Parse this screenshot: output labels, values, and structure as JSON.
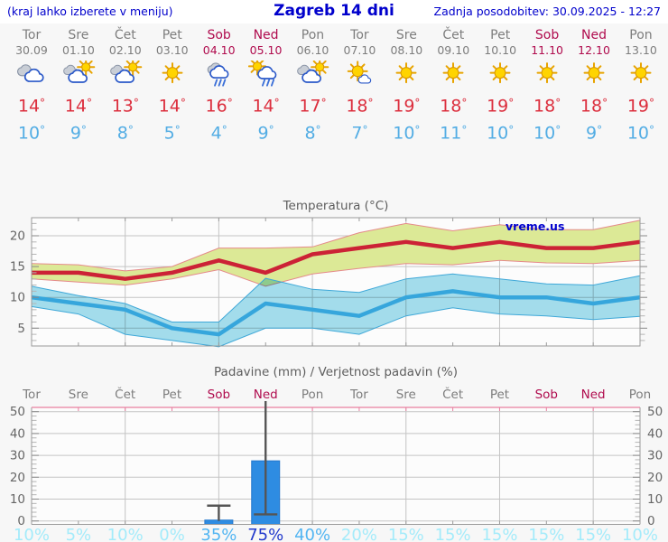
{
  "header": {
    "left_note": "(kraj lahko izberete v meniju)",
    "title": "Zagreb 14 dni",
    "updated": "Zadnja posodobitev: 30.09.2025 - 12:27"
  },
  "forecast": {
    "deg_symbol": "°",
    "days": [
      {
        "name": "Tor",
        "date": "30.09",
        "weekend": false,
        "icon": "cloudy",
        "tmax": 14,
        "tmin": 10
      },
      {
        "name": "Sre",
        "date": "01.10",
        "weekend": false,
        "icon": "sun-cloud",
        "tmax": 14,
        "tmin": 9
      },
      {
        "name": "Čet",
        "date": "02.10",
        "weekend": false,
        "icon": "sun-cloud",
        "tmax": 13,
        "tmin": 8
      },
      {
        "name": "Pet",
        "date": "03.10",
        "weekend": false,
        "icon": "sunny",
        "tmax": 14,
        "tmin": 5
      },
      {
        "name": "Sob",
        "date": "04.10",
        "weekend": true,
        "icon": "rain",
        "tmax": 16,
        "tmin": 4
      },
      {
        "name": "Ned",
        "date": "05.10",
        "weekend": true,
        "icon": "sun-rain",
        "tmax": 14,
        "tmin": 9
      },
      {
        "name": "Pon",
        "date": "06.10",
        "weekend": false,
        "icon": "sun-cloud",
        "tmax": 17,
        "tmin": 8
      },
      {
        "name": "Tor",
        "date": "07.10",
        "weekend": false,
        "icon": "sun-smallcloud",
        "tmax": 18,
        "tmin": 7
      },
      {
        "name": "Sre",
        "date": "08.10",
        "weekend": false,
        "icon": "sunny",
        "tmax": 19,
        "tmin": 10
      },
      {
        "name": "Čet",
        "date": "09.10",
        "weekend": false,
        "icon": "sunny",
        "tmax": 18,
        "tmin": 11
      },
      {
        "name": "Pet",
        "date": "10.10",
        "weekend": false,
        "icon": "sunny",
        "tmax": 19,
        "tmin": 10
      },
      {
        "name": "Sob",
        "date": "11.10",
        "weekend": true,
        "icon": "sunny",
        "tmax": 18,
        "tmin": 10
      },
      {
        "name": "Ned",
        "date": "12.10",
        "weekend": true,
        "icon": "sunny",
        "tmax": 18,
        "tmin": 9
      },
      {
        "name": "Pon",
        "date": "13.10",
        "weekend": false,
        "icon": "sunny",
        "tmax": 19,
        "tmin": 10
      }
    ]
  },
  "chart_data": [
    {
      "type": "line",
      "title": "Temperatura (°C)",
      "watermark": "vreme.us",
      "x": [
        "30.09",
        "01.10",
        "02.10",
        "03.10",
        "04.10",
        "05.10",
        "06.10",
        "07.10",
        "08.10",
        "09.10",
        "10.10",
        "11.10",
        "12.10",
        "13.10"
      ],
      "series": [
        {
          "name": "max-temp",
          "color": "#cc2236",
          "values": [
            14,
            14,
            13,
            14,
            16,
            14,
            17,
            18,
            19,
            18,
            19,
            18,
            18,
            19
          ]
        },
        {
          "name": "max-temp-band-upper",
          "color": "#dce996",
          "values": [
            15.5,
            15.3,
            14.3,
            15.0,
            18.0,
            18.0,
            18.2,
            20.5,
            22.0,
            20.8,
            21.8,
            21.0,
            21.0,
            22.5
          ]
        },
        {
          "name": "max-temp-band-lower",
          "color": "#dce996",
          "values": [
            13.0,
            12.5,
            12.0,
            13.0,
            14.5,
            11.8,
            13.8,
            14.7,
            15.5,
            15.3,
            16.0,
            15.6,
            15.5,
            16.0
          ]
        },
        {
          "name": "min-temp",
          "color": "#36a6dc",
          "values": [
            10,
            9,
            8,
            5,
            4,
            9,
            8,
            7,
            10,
            11,
            10,
            10,
            9,
            10
          ]
        },
        {
          "name": "min-temp-band-upper",
          "color": "#a5dfee",
          "values": [
            11.8,
            10.3,
            9.0,
            6.0,
            6.0,
            13.1,
            11.3,
            10.8,
            13.0,
            13.8,
            13.0,
            12.2,
            12.0,
            13.5
          ]
        },
        {
          "name": "min-temp-band-lower",
          "color": "#a5dfee",
          "values": [
            8.5,
            7.3,
            4.0,
            3.0,
            2.0,
            5.0,
            5.0,
            4.0,
            7.0,
            8.3,
            7.3,
            7.0,
            6.4,
            6.9
          ]
        }
      ],
      "ylim": [
        2,
        23
      ],
      "yticks": [
        5,
        10,
        15,
        20
      ],
      "grid": true,
      "legend": "none"
    },
    {
      "type": "bar",
      "title": "Padavine (mm) / Verjetnost padavin (%)",
      "categories": [
        "Tor",
        "Sre",
        "Čet",
        "Pet",
        "Sob",
        "Ned",
        "Pon",
        "Tor",
        "Sre",
        "Čet",
        "Pet",
        "Sob",
        "Ned",
        "Pon"
      ],
      "weekend_indexes": [
        4,
        5,
        11,
        12
      ],
      "values": [
        0,
        0,
        0,
        0,
        0.4,
        27.5,
        0,
        0,
        0,
        0,
        0,
        0,
        0,
        0
      ],
      "error_bars": [
        {
          "day_index": 4,
          "from": 0,
          "to": 7,
          "cap_top": true,
          "cap_bottom": false
        },
        {
          "day_index": 5,
          "from": 3,
          "to": 55,
          "cap_top": false,
          "cap_bottom": true
        }
      ],
      "probabilities": [
        "10%",
        "5%",
        "10%",
        "0%",
        "35%",
        "75%",
        "40%",
        "20%",
        "15%",
        "15%",
        "15%",
        "15%",
        "15%",
        "10%"
      ],
      "prob_levels": [
        "low",
        "low",
        "low",
        "low",
        "mid",
        "high",
        "mid",
        "low",
        "low",
        "low",
        "low",
        "low",
        "low",
        "low"
      ],
      "ylim": [
        0,
        52
      ],
      "yticks": [
        0,
        10,
        20,
        30,
        40,
        50
      ],
      "grid": true
    }
  ],
  "colors": {
    "accent_blue": "#0000cc",
    "day_gray": "#7d7d7d",
    "weekend": "#b00c4e",
    "tmax_text": "#dc2f3e",
    "tmin_text": "#53ade4",
    "line_max": "#cc2236",
    "line_min": "#36a6dc",
    "band_max_fill": "#dce996",
    "band_max_edge": "#e58a8a",
    "band_min_fill": "#a5dfee",
    "band_min_edge": "#3fa8d8",
    "bar_fill": "#2e8ce2",
    "bar_edge": "#2477cc",
    "whisker": "#555555",
    "grid": "#c4c4c4",
    "axis": "#9a9a9a",
    "tick_label": "#666666",
    "title_gray": "#5e5e5e",
    "precip_top_border": "#e87fa0",
    "prob_low": "#a4ebfa",
    "prob_mid": "#52b5f2",
    "prob_high": "#2139cc"
  }
}
